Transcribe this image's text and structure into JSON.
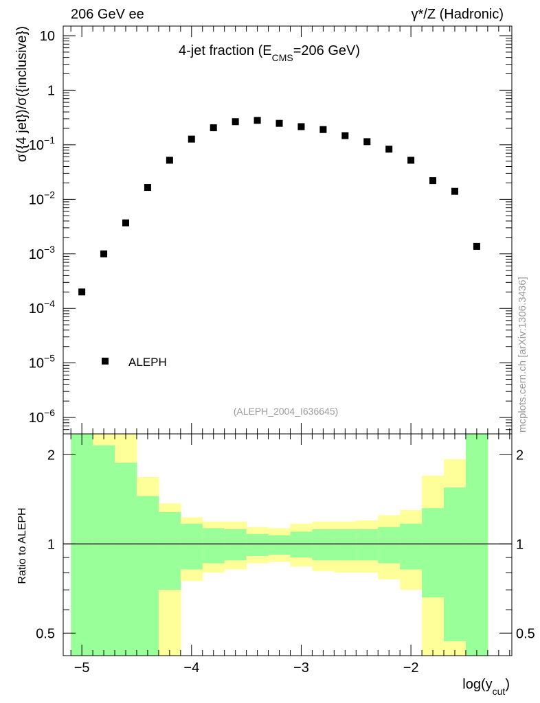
{
  "header": {
    "left": "206 GeV ee",
    "right_prefix": "γ*/Z (Hadronic)"
  },
  "side_text": "mcplots.cern.ch [arXiv:1306.3436]",
  "colors": {
    "band_outer": "#ffff99",
    "band_inner": "#99ff99",
    "marker": "#000000"
  },
  "chart_data": [
    {
      "type": "scatter",
      "title_main": "4-jet fraction (E",
      "title_sub": "CMS",
      "title_tail": "=206 GeV)",
      "ylabel": "σ({4 jet})/σ({inclusive})",
      "yscale": "log",
      "ylim": [
        5e-07,
        15
      ],
      "xlim": [
        -5.17,
        -1.08
      ],
      "y_ticks": [
        {
          "value": 1e-06,
          "base": "10",
          "exp": "−6"
        },
        {
          "value": 1e-05,
          "base": "10",
          "exp": "−5"
        },
        {
          "value": 0.0001,
          "base": "10",
          "exp": "−4"
        },
        {
          "value": 0.001,
          "base": "10",
          "exp": "−3"
        },
        {
          "value": 0.01,
          "base": "10",
          "exp": "−2"
        },
        {
          "value": 0.1,
          "base": "10",
          "exp": "−1"
        },
        {
          "value": 1,
          "base": "1",
          "exp": ""
        },
        {
          "value": 10,
          "base": "10",
          "exp": ""
        }
      ],
      "legend": {
        "label": "ALEPH",
        "position": "bottom-left"
      },
      "watermark": "(ALEPH_2004_I636645)",
      "series": [
        {
          "name": "ALEPH",
          "x": [
            -5.0,
            -4.8,
            -4.6,
            -4.4,
            -4.2,
            -4.0,
            -3.8,
            -3.6,
            -3.4,
            -3.2,
            -3.0,
            -2.8,
            -2.6,
            -2.4,
            -2.2,
            -2.0,
            -1.8,
            -1.6,
            -1.4
          ],
          "y": [
            0.0002,
            0.001,
            0.0037,
            0.0165,
            0.052,
            0.127,
            0.205,
            0.265,
            0.28,
            0.247,
            0.215,
            0.19,
            0.147,
            0.114,
            0.083,
            0.052,
            0.022,
            0.014,
            0.00137
          ]
        }
      ]
    },
    {
      "type": "area",
      "ylabel": "Ratio to ALEPH",
      "xlabel_main": "log(y",
      "xlabel_sub": "cut",
      "xlabel_tail": ")",
      "yscale": "log",
      "ylim": [
        0.42,
        2.35
      ],
      "xlim": [
        -5.17,
        -1.08
      ],
      "x_ticks": [
        {
          "value": -5,
          "label": "−5"
        },
        {
          "value": -4,
          "label": "−4"
        },
        {
          "value": -3,
          "label": "−3"
        },
        {
          "value": -2,
          "label": "−2"
        }
      ],
      "y_ticks": [
        {
          "value": 0.5,
          "label": "0.5"
        },
        {
          "value": 1,
          "label": "1"
        },
        {
          "value": 2,
          "label": "2"
        }
      ],
      "bin_edges": [
        -5.1,
        -4.9,
        -4.7,
        -4.5,
        -4.3,
        -4.1,
        -3.9,
        -3.7,
        -3.5,
        -3.3,
        -3.1,
        -2.9,
        -2.7,
        -2.5,
        -2.3,
        -2.1,
        -1.9,
        -1.7,
        -1.5,
        -1.3
      ],
      "inner_upper": [
        2.4,
        2.15,
        1.88,
        1.45,
        1.28,
        1.17,
        1.13,
        1.12,
        1.08,
        1.07,
        1.1,
        1.12,
        1.12,
        1.12,
        1.14,
        1.17,
        1.32,
        1.55,
        2.4
      ],
      "inner_lower": [
        0.3,
        0.3,
        0.3,
        0.3,
        0.7,
        0.82,
        0.86,
        0.88,
        0.91,
        0.92,
        0.9,
        0.88,
        0.88,
        0.88,
        0.86,
        0.82,
        0.66,
        0.47,
        0.3
      ],
      "outer_upper": [
        2.4,
        2.4,
        2.4,
        1.68,
        1.37,
        1.23,
        1.19,
        1.19,
        1.14,
        1.13,
        1.17,
        1.19,
        1.19,
        1.2,
        1.25,
        1.3,
        1.7,
        1.93,
        2.4
      ],
      "outer_lower": [
        0.3,
        0.3,
        0.3,
        0.3,
        0.3,
        0.75,
        0.8,
        0.82,
        0.86,
        0.87,
        0.84,
        0.81,
        0.8,
        0.8,
        0.76,
        0.7,
        0.38,
        0.3,
        0.3
      ],
      "reference_line": 1
    }
  ]
}
